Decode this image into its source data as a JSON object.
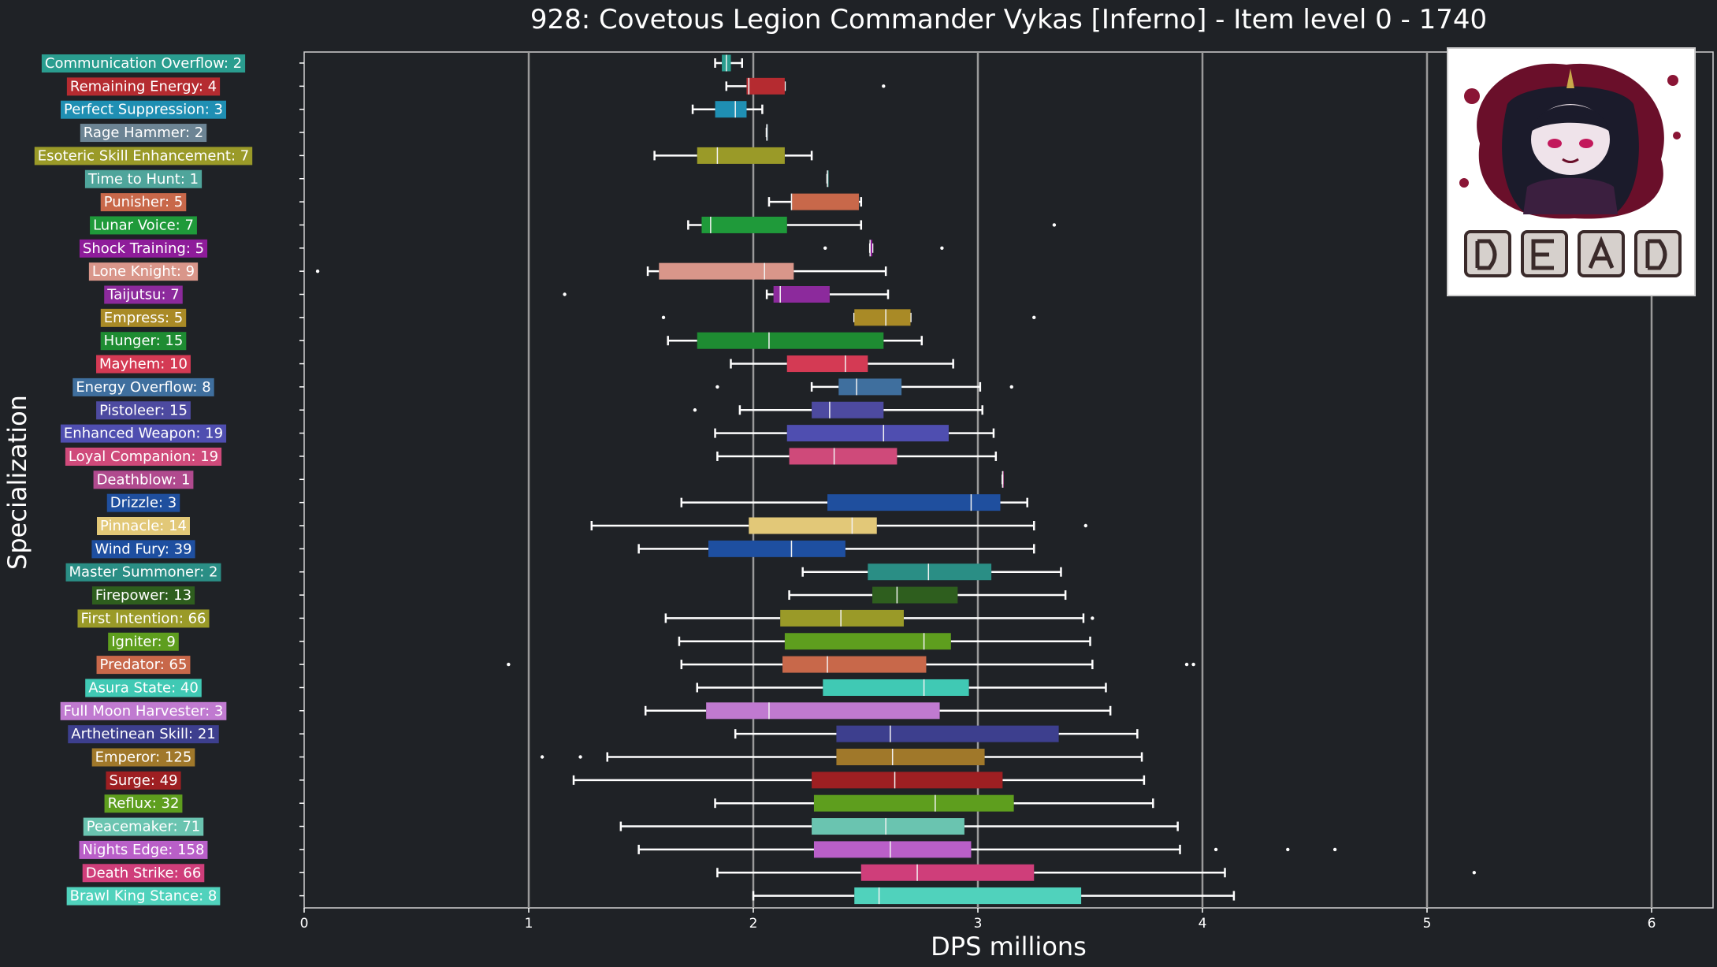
{
  "chart_data": {
    "type": "box",
    "orientation": "horizontal",
    "title": "928: Covetous Legion Commander Vykas [Inferno] - Item level 0 - 1740",
    "xlabel": "DPS millions",
    "ylabel": "Specialization",
    "xlim": [
      0,
      6.3
    ],
    "xticks": [
      0,
      1,
      2,
      3,
      4,
      5,
      6
    ],
    "grid": "vertical",
    "categories": [
      {
        "label": "Communication Overflow: 2",
        "color": "#2a9d8f",
        "whisker_low": 1.83,
        "q1": 1.86,
        "median": 1.88,
        "q3": 1.9,
        "whisker_high": 1.95,
        "outliers": []
      },
      {
        "label": "Remaining Energy: 4",
        "color": "#b52b30",
        "whisker_low": 1.88,
        "q1": 1.97,
        "median": 1.98,
        "q3": 2.14,
        "whisker_high": 2.14,
        "outliers": [
          2.58
        ]
      },
      {
        "label": "Perfect Suppression: 3",
        "color": "#1f8fb3",
        "whisker_low": 1.73,
        "q1": 1.83,
        "median": 1.92,
        "q3": 1.97,
        "whisker_high": 2.04,
        "outliers": []
      },
      {
        "label": "Rage Hammer: 2",
        "color": "#6c8494",
        "whisker_low": 2.06,
        "q1": 2.06,
        "median": 2.06,
        "q3": 2.06,
        "whisker_high": 2.06,
        "outliers": []
      },
      {
        "label": "Esoteric Skill Enhancement: 7",
        "color": "#9a9a28",
        "whisker_low": 1.56,
        "q1": 1.75,
        "median": 1.84,
        "q3": 2.14,
        "whisker_high": 2.26,
        "outliers": []
      },
      {
        "label": "Time to Hunt: 1",
        "color": "#4fa59b",
        "whisker_low": 2.33,
        "q1": 2.33,
        "median": 2.33,
        "q3": 2.33,
        "whisker_high": 2.33,
        "outliers": []
      },
      {
        "label": "Punisher: 5",
        "color": "#c8684a",
        "whisker_low": 2.07,
        "q1": 2.17,
        "median": 2.17,
        "q3": 2.47,
        "whisker_high": 2.48,
        "outliers": []
      },
      {
        "label": "Lunar Voice: 7",
        "color": "#1f9a3a",
        "whisker_low": 1.71,
        "q1": 1.77,
        "median": 1.81,
        "q3": 2.15,
        "whisker_high": 2.48,
        "outliers": [
          3.34
        ]
      },
      {
        "label": "Shock Training: 5",
        "color": "#8e1c9a",
        "whisker_low": 2.52,
        "q1": 2.52,
        "median": 2.52,
        "q3": 2.53,
        "whisker_high": 2.53,
        "outliers": [
          2.32,
          2.84
        ]
      },
      {
        "label": "Lone Knight: 9",
        "color": "#d9968a",
        "whisker_low": 1.53,
        "q1": 1.58,
        "median": 2.05,
        "q3": 2.18,
        "whisker_high": 2.59,
        "outliers": [
          0.06
        ]
      },
      {
        "label": "Taijutsu: 7",
        "color": "#8c2a9c",
        "whisker_low": 2.06,
        "q1": 2.09,
        "median": 2.12,
        "q3": 2.34,
        "whisker_high": 2.6,
        "outliers": [
          1.16
        ]
      },
      {
        "label": "Empress: 5",
        "color": "#a98a26",
        "whisker_low": 2.45,
        "q1": 2.45,
        "median": 2.59,
        "q3": 2.7,
        "whisker_high": 2.7,
        "outliers": [
          1.6,
          3.25
        ]
      },
      {
        "label": "Hunger: 15",
        "color": "#1e8c32",
        "whisker_low": 1.62,
        "q1": 1.75,
        "median": 2.07,
        "q3": 2.58,
        "whisker_high": 2.75,
        "outliers": []
      },
      {
        "label": "Mayhem: 10",
        "color": "#d43a54",
        "whisker_low": 1.9,
        "q1": 2.15,
        "median": 2.41,
        "q3": 2.51,
        "whisker_high": 2.89,
        "outliers": []
      },
      {
        "label": "Energy Overflow: 8",
        "color": "#3f6f9e",
        "whisker_low": 2.26,
        "q1": 2.38,
        "median": 2.46,
        "q3": 2.66,
        "whisker_high": 3.01,
        "outliers": [
          1.84,
          3.15
        ]
      },
      {
        "label": "Pistoleer: 15",
        "color": "#4d4aa0",
        "whisker_low": 1.94,
        "q1": 2.26,
        "median": 2.34,
        "q3": 2.58,
        "whisker_high": 3.02,
        "outliers": [
          1.74
        ]
      },
      {
        "label": "Enhanced Weapon: 19",
        "color": "#4f4eb0",
        "whisker_low": 1.83,
        "q1": 2.15,
        "median": 2.58,
        "q3": 2.87,
        "whisker_high": 3.07,
        "outliers": []
      },
      {
        "label": "Loyal Companion: 19",
        "color": "#cf4a7a",
        "whisker_low": 1.84,
        "q1": 2.16,
        "median": 2.36,
        "q3": 2.64,
        "whisker_high": 3.08,
        "outliers": []
      },
      {
        "label": "Deathblow: 1",
        "color": "#b04a8e",
        "whisker_low": 3.11,
        "q1": 3.11,
        "median": 3.11,
        "q3": 3.11,
        "whisker_high": 3.11,
        "outliers": []
      },
      {
        "label": "Drizzle: 3",
        "color": "#1f4f9e",
        "whisker_low": 1.68,
        "q1": 2.33,
        "median": 2.97,
        "q3": 3.1,
        "whisker_high": 3.22,
        "outliers": []
      },
      {
        "label": "Pinnacle: 14",
        "color": "#e2c878",
        "whisker_low": 1.28,
        "q1": 1.98,
        "median": 2.44,
        "q3": 2.55,
        "whisker_high": 3.25,
        "outliers": [
          3.48
        ]
      },
      {
        "label": "Wind Fury: 39",
        "color": "#1e4fa0",
        "whisker_low": 1.49,
        "q1": 1.8,
        "median": 2.17,
        "q3": 2.41,
        "whisker_high": 3.25,
        "outliers": []
      },
      {
        "label": "Master Summoner: 2",
        "color": "#2a8e85",
        "whisker_low": 2.22,
        "q1": 2.51,
        "median": 2.78,
        "q3": 3.06,
        "whisker_high": 3.37,
        "outliers": []
      },
      {
        "label": "Firepower: 13",
        "color": "#2e5e1e",
        "whisker_low": 2.16,
        "q1": 2.53,
        "median": 2.64,
        "q3": 2.91,
        "whisker_high": 3.39,
        "outliers": []
      },
      {
        "label": "First Intention: 66",
        "color": "#9a9a28",
        "whisker_low": 1.61,
        "q1": 2.12,
        "median": 2.39,
        "q3": 2.67,
        "whisker_high": 3.47,
        "outliers": [
          3.51
        ]
      },
      {
        "label": "Igniter: 9",
        "color": "#5e9e1e",
        "whisker_low": 1.67,
        "q1": 2.14,
        "median": 2.76,
        "q3": 2.88,
        "whisker_high": 3.5,
        "outliers": []
      },
      {
        "label": "Predator: 65",
        "color": "#c8684a",
        "whisker_low": 1.68,
        "q1": 2.13,
        "median": 2.33,
        "q3": 2.77,
        "whisker_high": 3.51,
        "outliers": [
          0.91,
          3.93,
          3.96
        ]
      },
      {
        "label": "Asura State: 40",
        "color": "#40c9b4",
        "whisker_low": 1.75,
        "q1": 2.31,
        "median": 2.76,
        "q3": 2.96,
        "whisker_high": 3.57,
        "outliers": []
      },
      {
        "label": "Full Moon Harvester: 3",
        "color": "#c07ad0",
        "whisker_low": 1.52,
        "q1": 1.79,
        "median": 2.07,
        "q3": 2.83,
        "whisker_high": 3.59,
        "outliers": []
      },
      {
        "label": "Arthetinean Skill: 21",
        "color": "#3d3f8e",
        "whisker_low": 1.92,
        "q1": 2.37,
        "median": 2.61,
        "q3": 3.36,
        "whisker_high": 3.71,
        "outliers": []
      },
      {
        "label": "Emperor: 125",
        "color": "#a0782a",
        "whisker_low": 1.35,
        "q1": 2.37,
        "median": 2.62,
        "q3": 3.03,
        "whisker_high": 3.73,
        "outliers": [
          1.06,
          1.23
        ]
      },
      {
        "label": "Surge: 49",
        "color": "#9e1f22",
        "whisker_low": 1.2,
        "q1": 2.26,
        "median": 2.63,
        "q3": 3.11,
        "whisker_high": 3.74,
        "outliers": []
      },
      {
        "label": "Reflux: 32",
        "color": "#5e9e1e",
        "whisker_low": 1.83,
        "q1": 2.27,
        "median": 2.81,
        "q3": 3.16,
        "whisker_high": 3.78,
        "outliers": []
      },
      {
        "label": "Peacemaker: 71",
        "color": "#6ac4b0",
        "whisker_low": 1.41,
        "q1": 2.26,
        "median": 2.59,
        "q3": 2.94,
        "whisker_high": 3.89,
        "outliers": []
      },
      {
        "label": "Nights Edge: 158",
        "color": "#b95fc8",
        "whisker_low": 1.49,
        "q1": 2.27,
        "median": 2.61,
        "q3": 2.97,
        "whisker_high": 3.9,
        "outliers": [
          4.06,
          4.38,
          4.59
        ]
      },
      {
        "label": "Death Strike: 66",
        "color": "#cf3e7a",
        "whisker_low": 1.84,
        "q1": 2.48,
        "median": 2.73,
        "q3": 3.25,
        "whisker_high": 4.1,
        "outliers": [
          5.21
        ]
      },
      {
        "label": "Brawl King Stance: 8",
        "color": "#50d2bc",
        "whisker_low": 2.0,
        "q1": 2.45,
        "median": 2.56,
        "q3": 3.46,
        "whisker_high": 4.14,
        "outliers": []
      }
    ]
  }
}
